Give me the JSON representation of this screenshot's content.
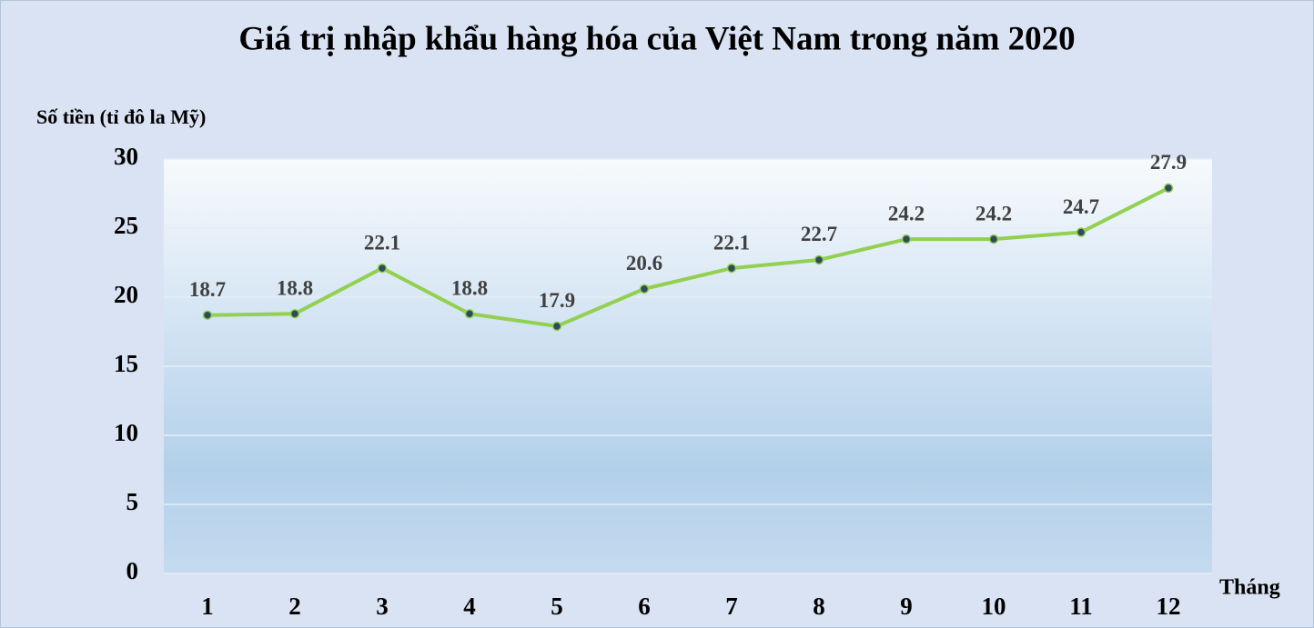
{
  "chart_data": {
    "type": "line",
    "title": "Giá trị nhập khẩu hàng hóa của Việt Nam trong năm 2020",
    "ylabel": "Số tiền (tỉ đô la Mỹ)",
    "xlabel": "Tháng",
    "categories": [
      "1",
      "2",
      "3",
      "4",
      "5",
      "6",
      "7",
      "8",
      "9",
      "10",
      "11",
      "12"
    ],
    "values": [
      18.7,
      18.8,
      22.1,
      18.8,
      17.9,
      20.6,
      22.1,
      22.7,
      24.2,
      24.2,
      24.7,
      27.9
    ],
    "color": "#92d050",
    "marker_color": "#2e4a5c",
    "ylim": [
      0,
      30
    ],
    "yticks": [
      0,
      5,
      10,
      15,
      20,
      25,
      30
    ],
    "grid": true
  }
}
